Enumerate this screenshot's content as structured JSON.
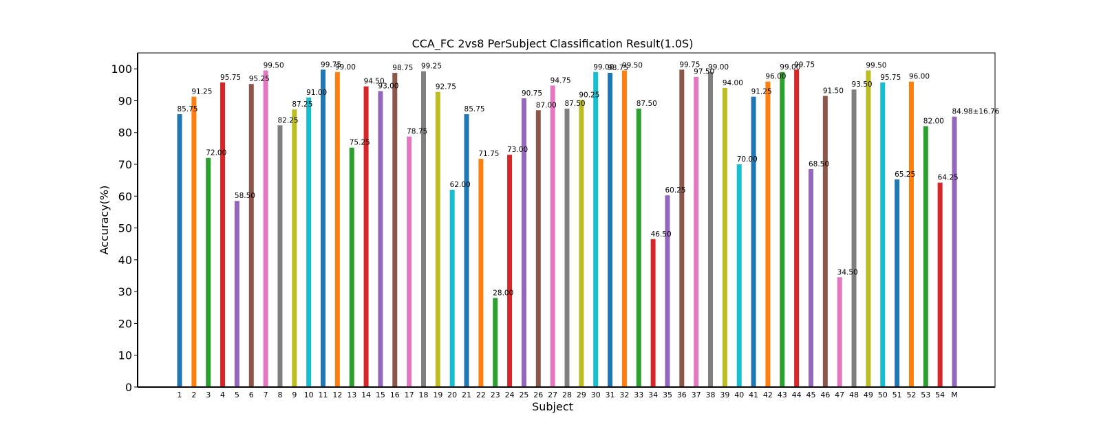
{
  "chart_data": {
    "type": "bar",
    "title": "CCA_FC 2vs8 PerSubject Classification Result(1.0S)",
    "xlabel": "Subject",
    "ylabel": "Accuracy(%)",
    "ylim": [
      0,
      105
    ],
    "yticks": [
      0,
      10,
      20,
      30,
      40,
      50,
      60,
      70,
      80,
      90,
      100
    ],
    "grid": false,
    "categories": [
      "1",
      "2",
      "3",
      "4",
      "5",
      "6",
      "7",
      "8",
      "9",
      "10",
      "11",
      "12",
      "13",
      "14",
      "15",
      "16",
      "17",
      "18",
      "19",
      "20",
      "21",
      "22",
      "23",
      "24",
      "25",
      "26",
      "27",
      "28",
      "29",
      "30",
      "31",
      "32",
      "33",
      "34",
      "35",
      "36",
      "37",
      "38",
      "39",
      "40",
      "41",
      "42",
      "43",
      "44",
      "45",
      "46",
      "47",
      "48",
      "49",
      "50",
      "51",
      "52",
      "53",
      "54",
      "M"
    ],
    "values": [
      85.75,
      91.25,
      72.0,
      95.75,
      58.5,
      95.25,
      99.5,
      82.25,
      87.25,
      91.0,
      99.75,
      99.0,
      75.25,
      94.5,
      93.0,
      98.75,
      78.75,
      99.25,
      92.75,
      62.0,
      85.75,
      71.75,
      28.0,
      73.0,
      90.75,
      87.0,
      94.75,
      87.5,
      90.25,
      99.0,
      98.75,
      99.5,
      87.5,
      46.5,
      60.25,
      99.75,
      97.5,
      99.0,
      94.0,
      70.0,
      91.25,
      96.0,
      99.0,
      99.75,
      68.5,
      91.5,
      34.5,
      93.5,
      99.5,
      95.75,
      65.25,
      96.0,
      82.0,
      64.25,
      84.98
    ],
    "data_labels": [
      "85.75",
      "91.25",
      "72.00",
      "95.75",
      "58.50",
      "95.25",
      "99.50",
      "82.25",
      "87.25",
      "91.00",
      "99.75",
      "99.00",
      "75.25",
      "94.50",
      "93.00",
      "98.75",
      "78.75",
      "99.25",
      "92.75",
      "62.00",
      "85.75",
      "71.75",
      "28.00",
      "73.00",
      "90.75",
      "87.00",
      "94.75",
      "87.50",
      "90.25",
      "99.00",
      "98.75",
      "99.50",
      "87.50",
      "46.50",
      "60.25",
      "99.75",
      "97.50",
      "99.00",
      "94.00",
      "70.00",
      "91.25",
      "96.00",
      "99.00",
      "99.75",
      "68.50",
      "91.50",
      "34.50",
      "93.50",
      "99.50",
      "95.75",
      "65.25",
      "96.00",
      "82.00",
      "64.25",
      "84.98±16.76"
    ],
    "colors": [
      "#1f77b4",
      "#ff7f0e",
      "#2ca02c",
      "#d62728",
      "#9467bd",
      "#8c564b",
      "#e377c2",
      "#7f7f7f",
      "#bcbd22",
      "#17becf"
    ],
    "mean_label_color": "#ff0000"
  }
}
